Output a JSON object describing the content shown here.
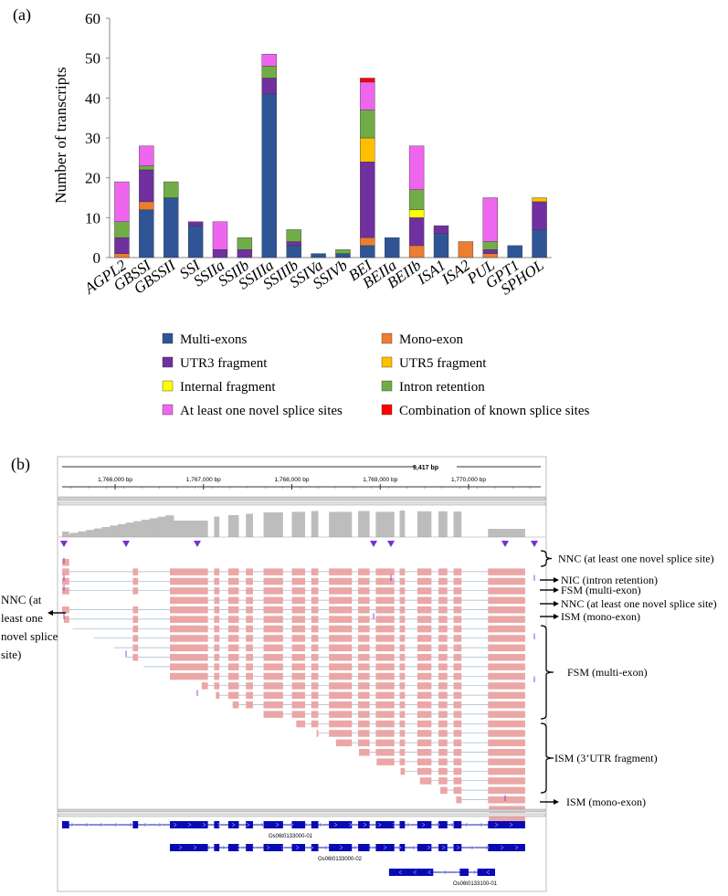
{
  "panel_a_label": "(a)",
  "panel_b_label": "(b)",
  "chart_data": {
    "type": "bar",
    "stacked": true,
    "title": "",
    "xlabel": "",
    "ylabel": "Number of transcripts",
    "ylim": [
      0,
      60
    ],
    "yticks": [
      0,
      10,
      20,
      30,
      40,
      50,
      60
    ],
    "grid": false,
    "legend_position": "bottom",
    "categories": [
      "AGPL2",
      "GBSSI",
      "GBSSII",
      "SSI",
      "SSIIa",
      "SSIIb",
      "SSIIIa",
      "SSIIIb",
      "SSIVa",
      "SSIVb",
      "BEI",
      "BEIIa",
      "BEIIb",
      "ISA1",
      "ISA2",
      "PUL",
      "GPT1",
      "SPHOL"
    ],
    "series": [
      {
        "name": "Multi-exons",
        "color": "#2F5597",
        "values": [
          0,
          12,
          15,
          8,
          0,
          0,
          41,
          3,
          1,
          1,
          3,
          5,
          0,
          6,
          0,
          0,
          3,
          7
        ]
      },
      {
        "name": "Mono-exon",
        "color": "#ED7D31",
        "values": [
          1,
          2,
          0,
          0,
          0,
          0,
          0,
          0,
          0,
          0,
          2,
          0,
          3,
          0,
          4,
          1,
          0,
          0
        ]
      },
      {
        "name": "UTR3 fragment",
        "color": "#7030A0",
        "values": [
          4,
          8,
          0,
          1,
          2,
          2,
          4,
          1,
          0,
          0,
          19,
          0,
          7,
          2,
          0,
          1,
          0,
          7
        ]
      },
      {
        "name": "UTR5 fragment",
        "color": "#FFC000",
        "values": [
          0,
          0,
          0,
          0,
          0,
          0,
          0,
          0,
          0,
          0,
          6,
          0,
          0,
          0,
          0,
          0,
          0,
          1
        ]
      },
      {
        "name": "Internal fragment",
        "color": "#FFFF00",
        "values": [
          0,
          0,
          0,
          0,
          0,
          0,
          0,
          0,
          0,
          0,
          0,
          0,
          2,
          0,
          0,
          0,
          0,
          0
        ]
      },
      {
        "name": "Intron retention",
        "color": "#70AD47",
        "values": [
          4,
          1,
          4,
          0,
          0,
          3,
          3,
          3,
          0,
          1,
          7,
          0,
          5,
          0,
          0,
          2,
          0,
          0
        ]
      },
      {
        "name": "At least one novel splice sites",
        "color": "#EE66EE",
        "values": [
          10,
          5,
          0,
          0,
          7,
          0,
          3,
          0,
          0,
          0,
          7,
          0,
          11,
          0,
          0,
          11,
          0,
          0
        ]
      },
      {
        "name": "Combination of known splice sites",
        "color": "#FF0000",
        "values": [
          0,
          0,
          0,
          0,
          0,
          0,
          0,
          0,
          0,
          0,
          1,
          0,
          0,
          0,
          0,
          0,
          0,
          0
        ]
      }
    ]
  },
  "igv": {
    "span_label": "9,417 bp",
    "ruler_ticks": [
      {
        "label": "1,766,000 bp",
        "pos": 1766000
      },
      {
        "label": "1,767,000 bp",
        "pos": 1767000
      },
      {
        "label": "1,768,000 bp",
        "pos": 1768000
      },
      {
        "label": "1,769,000 bp",
        "pos": 1769000
      },
      {
        "label": "1,770,000 bp",
        "pos": 1770000
      }
    ],
    "view_start": 1765400,
    "view_end": 1770817,
    "exons": [
      [
        1765400,
        1765480
      ],
      [
        1766200,
        1766260
      ],
      [
        1766620,
        1767050
      ],
      [
        1767120,
        1767180
      ],
      [
        1767280,
        1767400
      ],
      [
        1767480,
        1767560
      ],
      [
        1767680,
        1767900
      ],
      [
        1768000,
        1768150
      ],
      [
        1768220,
        1768300
      ],
      [
        1768420,
        1768680
      ],
      [
        1768750,
        1768880
      ],
      [
        1768950,
        1769160
      ],
      [
        1769220,
        1769280
      ],
      [
        1769420,
        1769580
      ],
      [
        1769660,
        1769760
      ],
      [
        1769830,
        1769920
      ],
      [
        1770220,
        1770640
      ]
    ],
    "coverage": [
      6,
      4,
      8,
      10,
      12,
      14,
      20,
      30,
      60,
      75,
      80,
      85,
      90,
      92,
      95,
      92,
      95,
      92,
      97,
      94,
      94,
      93,
      30,
      95,
      28,
      96
    ],
    "annotations": [
      {
        "label": "NNC (at least one novel splice site)",
        "side": "right"
      },
      {
        "label": "NIC (intron retention)",
        "side": "right"
      },
      {
        "label": "FSM (multi-exon)",
        "side": "right"
      },
      {
        "label": "NNC (at least one novel splice site)",
        "side": "right"
      },
      {
        "label": "ISM (mono-exon)",
        "side": "right"
      },
      {
        "label": "FSM (multi-exon)",
        "side": "right"
      },
      {
        "label": "ISM (3’UTR fragment)",
        "side": "right"
      },
      {
        "label": "ISM (mono-exon)",
        "side": "right"
      }
    ],
    "left_annotation_lines": [
      "NNC (at",
      "least one",
      "novel splice",
      "site)"
    ],
    "gene_models": [
      {
        "name": "Os06t0133000-01"
      },
      {
        "name": "Os06t0133000-02"
      },
      {
        "name": "Os06t0133100-01"
      }
    ]
  }
}
